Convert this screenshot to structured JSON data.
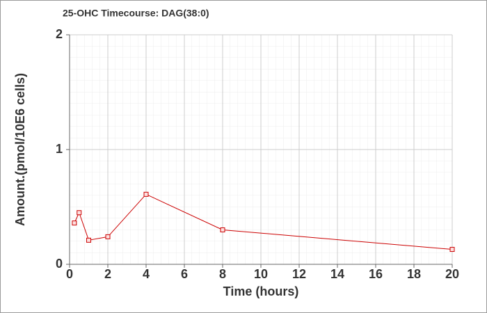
{
  "chart_data": {
    "type": "line",
    "title": "25-OHC Timecourse: DAG(38:0)",
    "x_label": "Time (hours)",
    "y_label": "Amount.(pmol/10E6 cells)",
    "x": [
      0.25,
      0.5,
      1,
      2,
      4,
      8,
      20
    ],
    "series": [
      {
        "name": "DAG(38:0)",
        "color": "#cc0000",
        "values": [
          0.36,
          0.45,
          0.21,
          0.24,
          0.61,
          0.3,
          0.13
        ]
      }
    ],
    "xlim": [
      0,
      20
    ],
    "xticks": [
      0,
      2,
      4,
      6,
      8,
      10,
      12,
      14,
      16,
      18,
      20
    ],
    "ylim": [
      0,
      2
    ],
    "yticks": [
      0,
      1,
      2
    ],
    "grid": true
  }
}
